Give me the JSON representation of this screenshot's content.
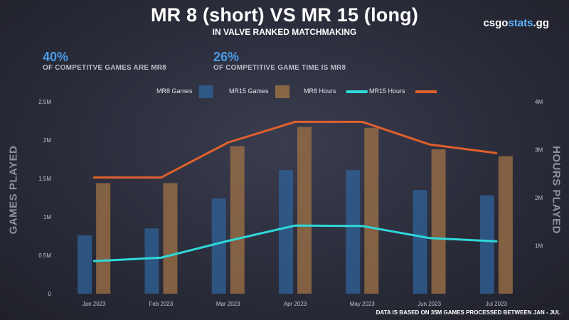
{
  "header": {
    "title": "MR 8 (short) VS MR 15 (long)",
    "subtitle": "IN VALVE RANKED MATCHMAKING",
    "brand_prefix": "csgo",
    "brand_accent": "stats",
    "brand_suffix": ".gg"
  },
  "stats": [
    {
      "value": "40%",
      "label": "OF COMPETITVE GAMES ARE MR8"
    },
    {
      "value": "26%",
      "label": "OF COMPETITIVE GAME TIME IS MR8"
    }
  ],
  "footnote": "DATA IS BASED ON 35M GAMES PROCESSED BETWEEN JAN - JUL",
  "colors": {
    "mr8_games": "#2f5f93",
    "mr15_games": "#9a6e45",
    "mr8_hours": "#2ed9d9",
    "mr15_hours": "#e0602d",
    "accent": "#4a9be6"
  },
  "chart_data": {
    "type": "bar",
    "categories": [
      "Jan 2023",
      "Feb 2023",
      "Mar 2023",
      "Apr 2023",
      "May 2023",
      "Jun 2023",
      "Jul 2023"
    ],
    "ylabel": "GAMES PLAYED",
    "y2label": "HOURS PLAYED",
    "ylim": [
      0,
      2500000
    ],
    "y2lim": [
      0,
      4000000
    ],
    "y_ticks": [
      "0",
      "0.5M",
      "1M",
      "1.5M",
      "2M",
      "2.5M"
    ],
    "y2_ticks": [
      "1M",
      "2M",
      "3M",
      "4M"
    ],
    "legend_position": "top",
    "series": [
      {
        "name": "MR8 Games",
        "type": "bar",
        "axis": "left",
        "color_key": "mr8_games",
        "values": [
          760000,
          850000,
          1240000,
          1610000,
          1610000,
          1350000,
          1280000
        ]
      },
      {
        "name": "MR15 Games",
        "type": "bar",
        "axis": "left",
        "color_key": "mr15_games",
        "values": [
          1440000,
          1440000,
          1920000,
          2170000,
          2160000,
          1880000,
          1790000
        ]
      },
      {
        "name": "MR8 Hours",
        "type": "line",
        "axis": "right",
        "color_key": "mr8_hours",
        "values": [
          680000,
          750000,
          1100000,
          1420000,
          1410000,
          1160000,
          1090000
        ]
      },
      {
        "name": "MR15 Hours",
        "type": "line",
        "axis": "right",
        "color_key": "mr15_hours",
        "values": [
          2420000,
          2420000,
          3150000,
          3580000,
          3580000,
          3110000,
          2930000
        ]
      }
    ]
  }
}
